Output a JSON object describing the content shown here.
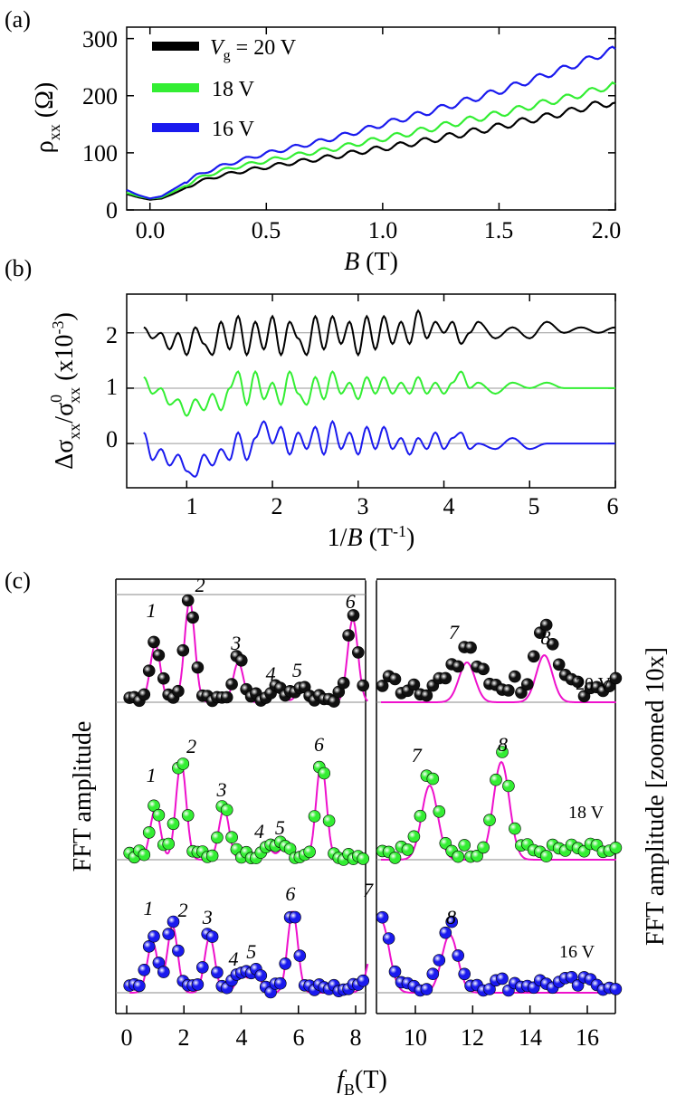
{
  "chart_data": [
    {
      "panel": "(a)",
      "type": "line",
      "xlabel": "B (T)",
      "ylabel": "ρxx (Ω)",
      "xlim": [
        -0.1,
        2.0
      ],
      "ylim": [
        0,
        320
      ],
      "xticks": [
        "0.0",
        "0.5",
        "1.0",
        "1.5",
        "2.0"
      ],
      "yticks": [
        "0",
        "100",
        "200",
        "300"
      ],
      "legend_position": "top-left",
      "series": [
        {
          "name": "Vg = 20 V",
          "color": "#000000",
          "x": [
            -0.1,
            -0.05,
            0,
            0.05,
            0.1,
            0.15,
            0.2,
            0.3,
            0.4,
            0.5,
            0.6,
            0.7,
            0.8,
            0.9,
            1.0,
            1.1,
            1.2,
            1.3,
            1.4,
            1.5,
            1.6,
            1.7,
            1.8,
            1.9,
            2.0
          ],
          "y": [
            28,
            22,
            18,
            20,
            28,
            38,
            48,
            60,
            68,
            75,
            82,
            88,
            94,
            102,
            108,
            115,
            122,
            130,
            138,
            146,
            155,
            163,
            172,
            183,
            188
          ]
        },
        {
          "name": "18 V",
          "color": "#33ee33",
          "x": [
            -0.1,
            -0.05,
            0,
            0.05,
            0.1,
            0.15,
            0.2,
            0.3,
            0.4,
            0.5,
            0.6,
            0.7,
            0.8,
            0.9,
            1.0,
            1.1,
            1.2,
            1.3,
            1.4,
            1.5,
            1.6,
            1.7,
            1.8,
            1.9,
            2.0
          ],
          "y": [
            30,
            24,
            20,
            22,
            32,
            42,
            54,
            68,
            78,
            86,
            94,
            101,
            108,
            117,
            125,
            133,
            142,
            151,
            160,
            168,
            178,
            188,
            197,
            208,
            220
          ]
        },
        {
          "name": "16 V",
          "color": "#1a1aee",
          "x": [
            -0.1,
            -0.05,
            0,
            0.05,
            0.1,
            0.15,
            0.2,
            0.3,
            0.4,
            0.5,
            0.6,
            0.7,
            0.8,
            0.9,
            1.0,
            1.1,
            1.2,
            1.3,
            1.4,
            1.5,
            1.6,
            1.7,
            1.8,
            1.9,
            2.0
          ],
          "y": [
            35,
            26,
            20,
            24,
            36,
            48,
            60,
            76,
            88,
            99,
            108,
            117,
            127,
            138,
            150,
            161,
            172,
            184,
            196,
            208,
            222,
            236,
            250,
            266,
            282
          ]
        }
      ]
    },
    {
      "panel": "(b)",
      "type": "line",
      "xlabel": "1/B (T-1)",
      "ylabel": "Δσxx/σ0xx (x10-3)",
      "xlim": [
        0.3,
        6.0
      ],
      "ylim": [
        -0.8,
        2.7
      ],
      "xticks": [
        "1",
        "2",
        "3",
        "4",
        "5",
        "6"
      ],
      "yticks": [
        "0",
        "1",
        "2"
      ],
      "series": [
        {
          "name": "20 V",
          "color": "#000000",
          "offset": 2,
          "x": [
            0.5,
            0.6,
            0.7,
            0.8,
            0.9,
            1.0,
            1.1,
            1.2,
            1.3,
            1.4,
            1.5,
            1.6,
            1.7,
            1.8,
            1.9,
            2.0,
            2.1,
            2.2,
            2.3,
            2.4,
            2.5,
            2.6,
            2.7,
            2.8,
            2.9,
            3.0,
            3.1,
            3.2,
            3.3,
            3.4,
            3.5,
            3.6,
            3.7,
            3.8,
            3.9,
            4.0,
            4.1,
            4.2,
            4.3,
            4.4,
            4.6,
            4.8,
            5.0,
            5.2,
            5.4,
            5.6,
            5.8,
            6.0
          ],
          "y": [
            2.1,
            1.9,
            2.0,
            1.7,
            2.0,
            1.6,
            2.1,
            1.8,
            1.6,
            2.2,
            1.7,
            2.3,
            1.6,
            2.2,
            1.7,
            2.3,
            1.6,
            2.2,
            1.9,
            1.6,
            2.3,
            1.7,
            2.3,
            1.8,
            2.2,
            1.6,
            2.3,
            1.7,
            2.3,
            1.8,
            2.2,
            1.8,
            2.4,
            1.9,
            2.2,
            2.0,
            2.2,
            1.8,
            2.0,
            2.2,
            1.9,
            2.1,
            1.9,
            2.2,
            2.0,
            2.1,
            2.0,
            2.1
          ]
        },
        {
          "name": "18 V",
          "color": "#33ee33",
          "offset": 1,
          "x": [
            0.5,
            0.6,
            0.7,
            0.8,
            0.9,
            1.0,
            1.1,
            1.2,
            1.3,
            1.4,
            1.5,
            1.6,
            1.7,
            1.8,
            1.9,
            2.0,
            2.1,
            2.2,
            2.3,
            2.4,
            2.5,
            2.6,
            2.7,
            2.8,
            2.9,
            3.0,
            3.1,
            3.2,
            3.3,
            3.4,
            3.5,
            3.6,
            3.7,
            3.8,
            3.9,
            4.0,
            4.1,
            4.2,
            4.3,
            4.4,
            4.6,
            4.8,
            5.0,
            5.2,
            5.4,
            5.6,
            5.8,
            6.0
          ],
          "y": [
            1.2,
            0.9,
            1.0,
            0.7,
            0.8,
            0.5,
            0.8,
            0.6,
            0.9,
            0.6,
            1.0,
            1.3,
            0.7,
            1.3,
            0.8,
            1.1,
            0.7,
            1.3,
            0.9,
            0.7,
            1.2,
            0.8,
            1.3,
            0.9,
            1.1,
            0.8,
            1.2,
            0.9,
            1.2,
            0.9,
            1.1,
            0.9,
            1.2,
            0.9,
            1.1,
            0.9,
            1.1,
            1.3,
            1.0,
            1.1,
            0.9,
            1.1,
            1.0,
            1.1,
            1.0,
            1.0,
            1.0,
            1.0
          ]
        },
        {
          "name": "16 V",
          "color": "#1a1aee",
          "offset": 0,
          "x": [
            0.5,
            0.6,
            0.7,
            0.8,
            0.9,
            1.0,
            1.1,
            1.2,
            1.3,
            1.4,
            1.5,
            1.6,
            1.7,
            1.8,
            1.9,
            2.0,
            2.1,
            2.2,
            2.3,
            2.4,
            2.5,
            2.6,
            2.7,
            2.8,
            2.9,
            3.0,
            3.1,
            3.2,
            3.3,
            3.4,
            3.5,
            3.6,
            3.7,
            3.8,
            3.9,
            4.0,
            4.1,
            4.2,
            4.3,
            4.4,
            4.6,
            4.8,
            5.0,
            5.2,
            5.4,
            5.6,
            5.8,
            6.0
          ],
          "y": [
            0.2,
            -0.3,
            -0.1,
            -0.4,
            -0.2,
            -0.5,
            -0.6,
            -0.2,
            -0.4,
            -0.1,
            -0.3,
            0.2,
            -0.3,
            0.1,
            0.4,
            0.0,
            0.3,
            -0.2,
            0.2,
            -0.1,
            0.3,
            -0.2,
            0.4,
            -0.1,
            0.2,
            -0.2,
            0.3,
            -0.1,
            0.3,
            -0.1,
            0.1,
            -0.2,
            0.1,
            -0.1,
            0.2,
            -0.1,
            0.1,
            0.2,
            -0.1,
            0.0,
            -0.1,
            0.1,
            -0.1,
            0.0,
            0.0,
            0.0,
            0.0,
            0.0
          ]
        }
      ]
    },
    {
      "panel": "(c)",
      "type": "scatter",
      "xlabel": "fB(T)",
      "ylabel_left": "FFT amplitude",
      "ylabel_right": "FFT amplitude [zoomed 10x]",
      "xlim_left": [
        0,
        8.5
      ],
      "xlim_right": [
        8.8,
        17
      ],
      "xticks": [
        "0",
        "2",
        "4",
        "6",
        "8",
        "10",
        "12",
        "14",
        "16"
      ],
      "series": [
        {
          "name": "20 V",
          "color": "#111111",
          "peaks": [
            {
              "label": "1",
              "f": 1.0
            },
            {
              "label": "2",
              "f": 2.2
            },
            {
              "label": "3",
              "f": 3.9
            },
            {
              "label": "4",
              "f": 5.3
            },
            {
              "label": "5",
              "f": 6.1
            },
            {
              "label": "6",
              "f": 7.9
            },
            {
              "label": "7",
              "f": 11.8
            },
            {
              "label": "8",
              "f": 14.5
            }
          ]
        },
        {
          "name": "18 V",
          "color": "#33ee33",
          "peaks": [
            {
              "label": "1",
              "f": 1.0
            },
            {
              "label": "2",
              "f": 1.9
            },
            {
              "label": "3",
              "f": 3.4
            },
            {
              "label": "4",
              "f": 4.9
            },
            {
              "label": "5",
              "f": 5.5
            },
            {
              "label": "6",
              "f": 6.8
            },
            {
              "label": "7",
              "f": 10.5
            },
            {
              "label": "8",
              "f": 13.0
            }
          ]
        },
        {
          "name": "16 V",
          "color": "#1a1aee",
          "peaks": [
            {
              "label": "1",
              "f": 0.9
            },
            {
              "label": "2",
              "f": 1.6
            },
            {
              "label": "3",
              "f": 2.9
            },
            {
              "label": "4",
              "f": 4.0
            },
            {
              "label": "5",
              "f": 4.5
            },
            {
              "label": "6",
              "f": 5.8
            },
            {
              "label": "7",
              "f": 8.8
            },
            {
              "label": "8",
              "f": 11.2
            }
          ]
        }
      ],
      "fit_color": "#ee11cc"
    }
  ]
}
